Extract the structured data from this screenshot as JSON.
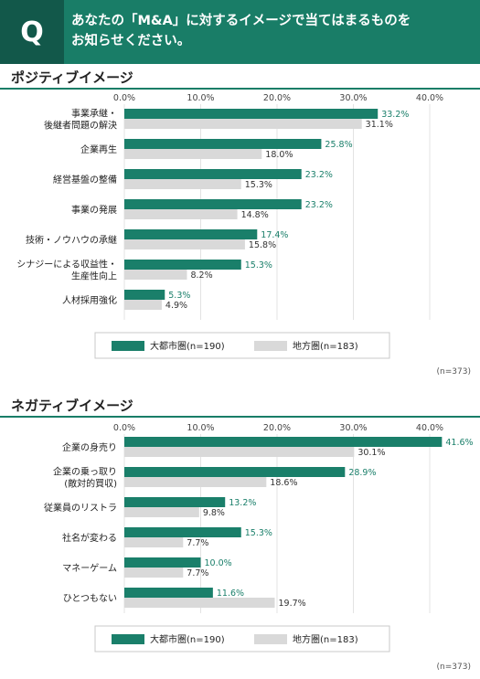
{
  "header": {
    "q_letter": "Q",
    "question_line1": "あなたの「M&A」に対するイメージで当てはまるものを",
    "question_line2": "お知らせください。"
  },
  "colors": {
    "metro": "#1a7f6a",
    "local": "#d9d9d9",
    "header": "#197d67",
    "label_metro": "#1a7f6a"
  },
  "chart_data": [
    {
      "type": "bar",
      "orientation": "horizontal",
      "title": "ポジティブイメージ",
      "xlim": [
        0,
        40
      ],
      "xticks": [
        "0.0%",
        "10.0%",
        "20.0%",
        "30.0%",
        "40.0%"
      ],
      "categories": [
        [
          "事業承継・",
          "後継者問題の解決"
        ],
        [
          "企業再生"
        ],
        [
          "経営基盤の整備"
        ],
        [
          "事業の発展"
        ],
        [
          "技術・ノウハウの承継"
        ],
        [
          "シナジーによる収益性・",
          "生産性向上"
        ],
        [
          "人材採用強化"
        ]
      ],
      "series": [
        {
          "name": "大都市圏(n=190)",
          "values": [
            33.2,
            25.8,
            23.2,
            23.2,
            17.4,
            15.3,
            5.3
          ]
        },
        {
          "name": "地方圏(n=183)",
          "values": [
            31.1,
            18.0,
            15.3,
            14.8,
            15.8,
            8.2,
            4.9
          ]
        }
      ],
      "value_labels": {
        "metro": [
          "33.2%",
          "25.8%",
          "23.2%",
          "23.2%",
          "17.4%",
          "15.3%",
          "5.3%"
        ],
        "local": [
          "31.1%",
          "18.0%",
          "15.3%",
          "14.8%",
          "15.8%",
          "8.2%",
          "4.9%"
        ]
      },
      "legend": [
        "大都市圏(n=190)",
        "地方圏(n=183)"
      ],
      "n_note": "(n=373)"
    },
    {
      "type": "bar",
      "orientation": "horizontal",
      "title": "ネガティブイメージ",
      "xlim": [
        0,
        40
      ],
      "xticks": [
        "0.0%",
        "10.0%",
        "20.0%",
        "30.0%",
        "40.0%"
      ],
      "categories": [
        [
          "企業の身売り"
        ],
        [
          "企業の乗っ取り",
          "(敵対的買収)"
        ],
        [
          "従業員のリストラ"
        ],
        [
          "社名が変わる"
        ],
        [
          "マネーゲーム"
        ],
        [
          "ひとつもない"
        ]
      ],
      "series": [
        {
          "name": "大都市圏(n=190)",
          "values": [
            41.6,
            28.9,
            13.2,
            15.3,
            10.0,
            11.6
          ]
        },
        {
          "name": "地方圏(n=183)",
          "values": [
            30.1,
            18.6,
            9.8,
            7.7,
            7.7,
            19.7
          ]
        }
      ],
      "value_labels": {
        "metro": [
          "41.6%",
          "28.9%",
          "13.2%",
          "15.3%",
          "10.0%",
          "11.6%"
        ],
        "local": [
          "30.1%",
          "18.6%",
          "9.8%",
          "7.7%",
          "7.7%",
          "19.7%"
        ]
      },
      "legend": [
        "大都市圏(n=190)",
        "地方圏(n=183)"
      ],
      "n_note": "(n=373)"
    }
  ]
}
